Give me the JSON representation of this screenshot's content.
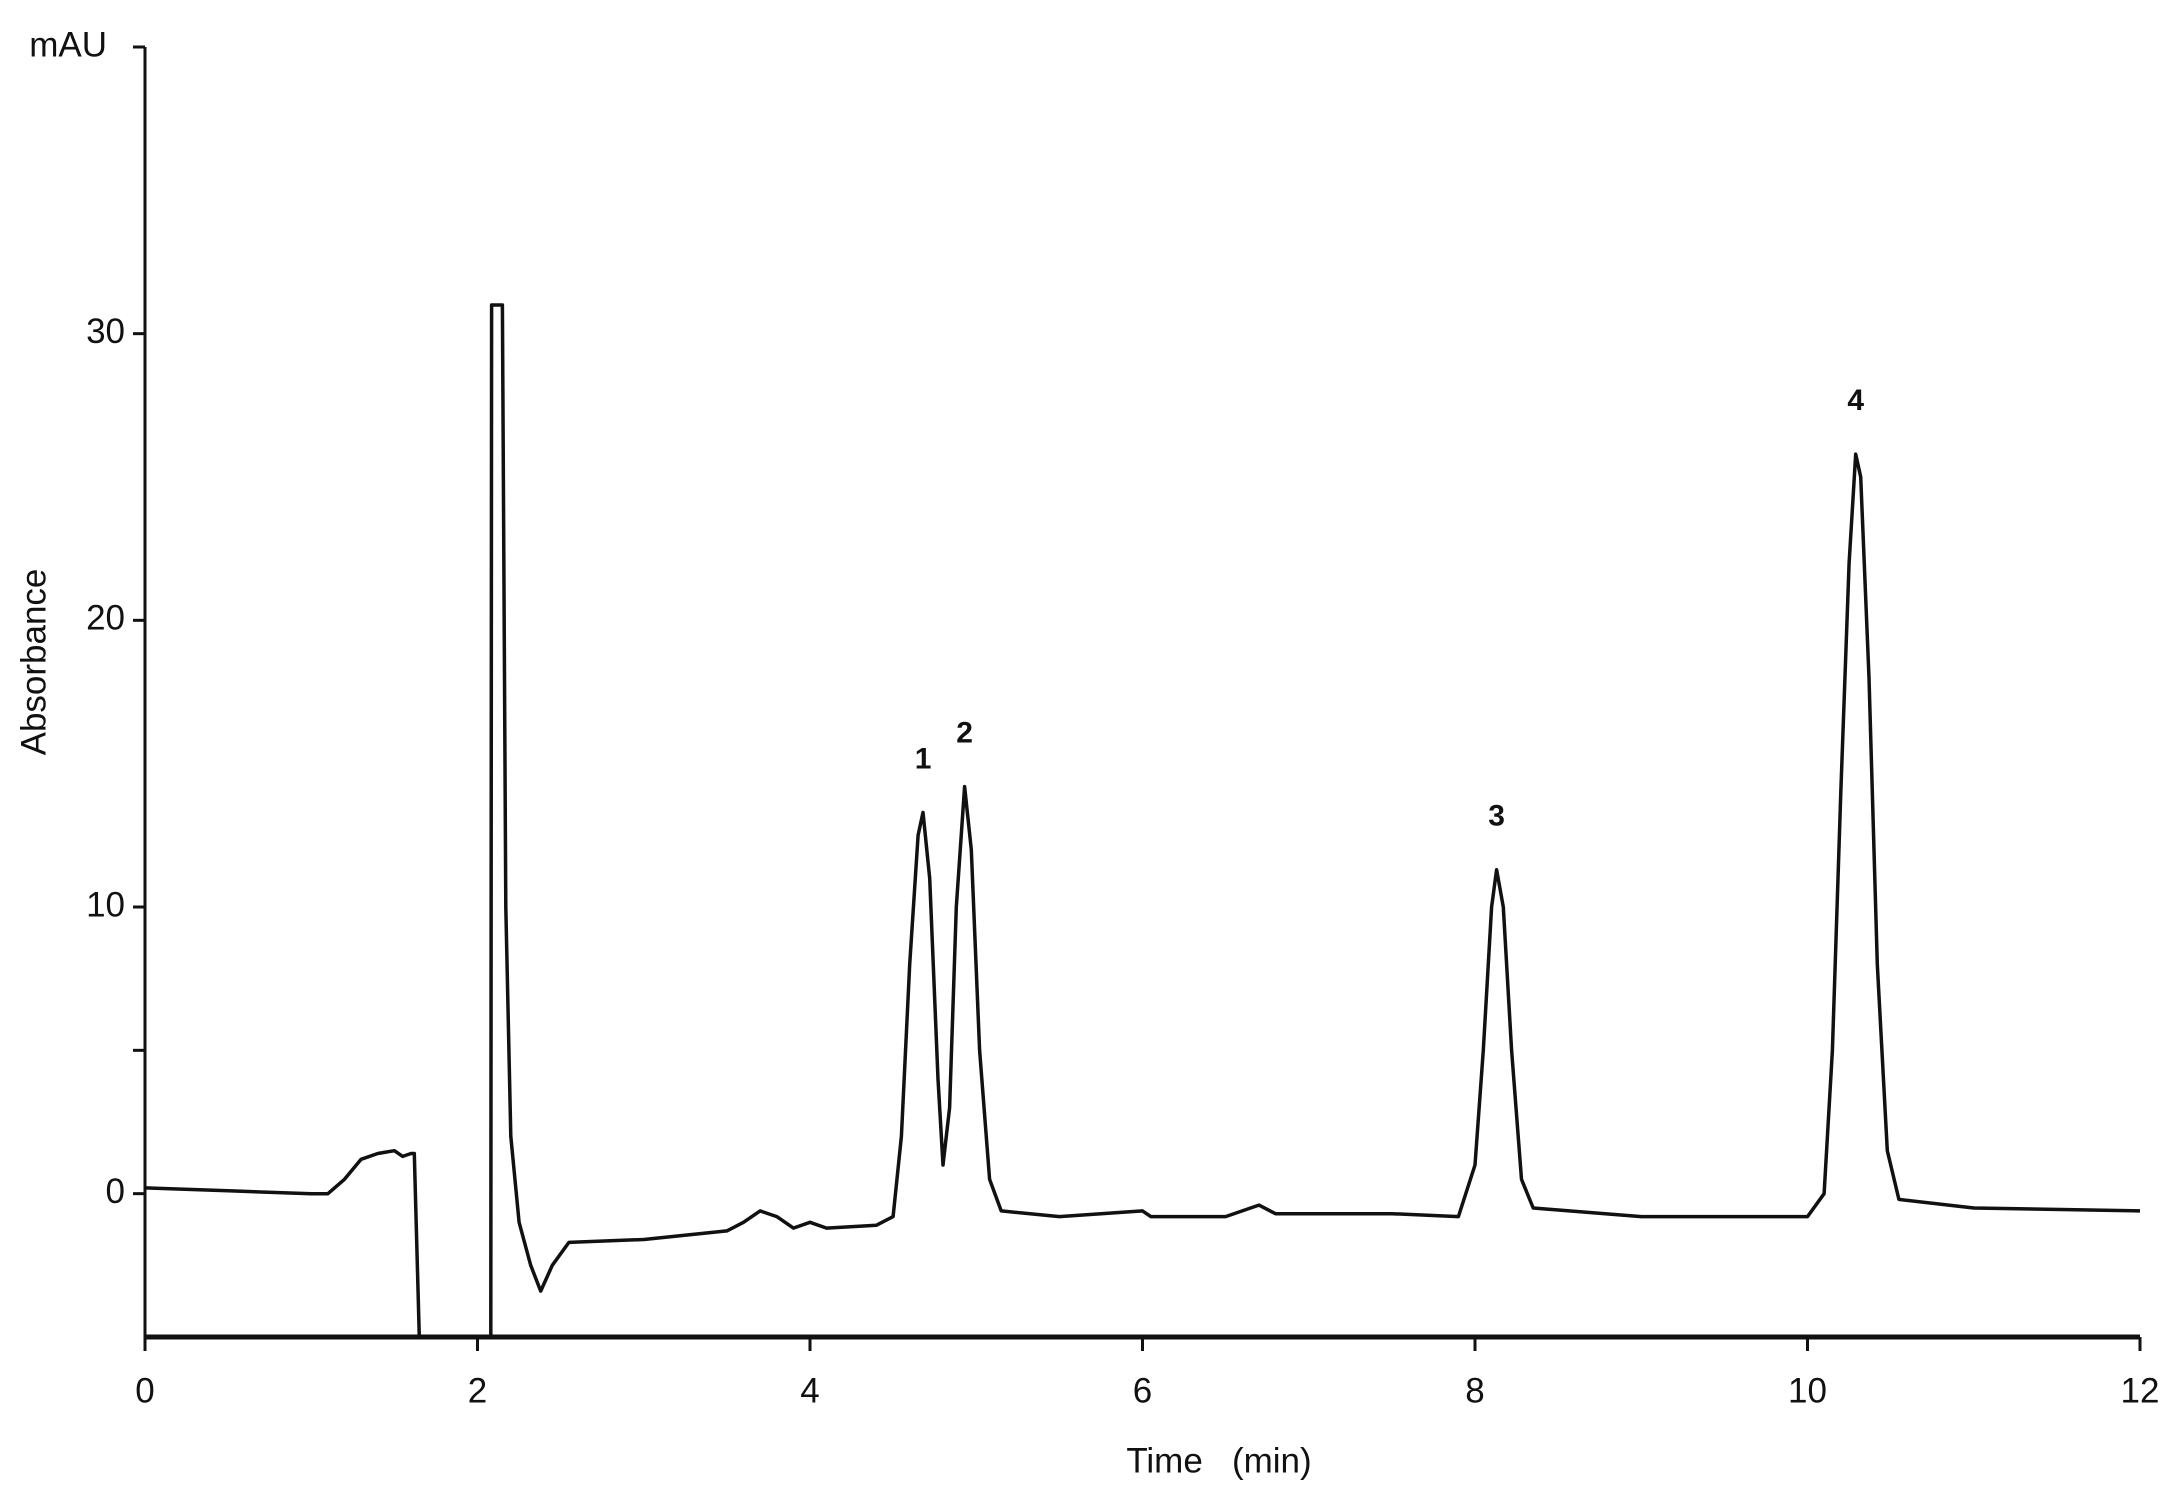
{
  "chart_data": {
    "type": "line",
    "y_label": "Absorbance",
    "y_unit": "mAU",
    "x_label": "Time   (min)",
    "xlim": [
      0,
      12
    ],
    "xticks": [
      0,
      2,
      4,
      6,
      8,
      10,
      12
    ],
    "ylim": [
      -5,
      40
    ],
    "yticks": [
      0,
      10,
      20,
      30
    ],
    "yminorticks": [
      5,
      40
    ],
    "grid": false,
    "series": [
      {
        "color": "#111111",
        "x": [
          0,
          0.5,
          1.0,
          1.1,
          1.2,
          1.3,
          1.4,
          1.5,
          1.55,
          1.6,
          1.62,
          1.65,
          2.08,
          2.085,
          2.13,
          2.15,
          2.17,
          2.2,
          2.25,
          2.32,
          2.38,
          2.45,
          2.55,
          3.0,
          3.5,
          3.6,
          3.7,
          3.8,
          3.9,
          4.0,
          4.1,
          4.4,
          4.5,
          4.55,
          4.6,
          4.65,
          4.68,
          4.72,
          4.77,
          4.8,
          4.84,
          4.88,
          4.93,
          4.97,
          5.02,
          5.08,
          5.15,
          5.5,
          6.0,
          6.05,
          6.5,
          6.7,
          6.8,
          7.5,
          7.9,
          8.0,
          8.05,
          8.1,
          8.13,
          8.17,
          8.22,
          8.28,
          8.35,
          9.0,
          10.0,
          10.1,
          10.15,
          10.2,
          10.25,
          10.29,
          10.32,
          10.37,
          10.42,
          10.48,
          10.55,
          11.0,
          12.0
        ],
        "values": [
          0.2,
          0.1,
          0.0,
          0.0,
          0.5,
          1.2,
          1.4,
          1.5,
          1.3,
          1.4,
          1.4,
          -5,
          -5,
          31,
          31,
          31,
          10,
          2,
          -1,
          -2.5,
          -3.4,
          -2.5,
          -1.7,
          -1.6,
          -1.3,
          -1.0,
          -0.6,
          -0.8,
          -1.2,
          -1.0,
          -1.2,
          -1.1,
          -0.8,
          2,
          8,
          12.5,
          13.3,
          11,
          4,
          1.0,
          3,
          10,
          14.2,
          12,
          5,
          0.5,
          -0.6,
          -0.8,
          -0.6,
          -0.8,
          -0.8,
          -0.4,
          -0.7,
          -0.7,
          -0.8,
          1,
          5,
          10,
          11.3,
          10,
          5,
          0.5,
          -0.5,
          -0.8,
          -0.8,
          0,
          5,
          14,
          22,
          25.8,
          25,
          18,
          8,
          1.5,
          -0.2,
          -0.5,
          -0.6
        ]
      }
    ],
    "annotations": [
      {
        "label": "1",
        "x": 4.68,
        "y": 13.3
      },
      {
        "label": "2",
        "x": 4.93,
        "y": 14.2
      },
      {
        "label": "3",
        "x": 8.13,
        "y": 11.3
      },
      {
        "label": "4",
        "x": 10.29,
        "y": 25.8
      }
    ]
  }
}
